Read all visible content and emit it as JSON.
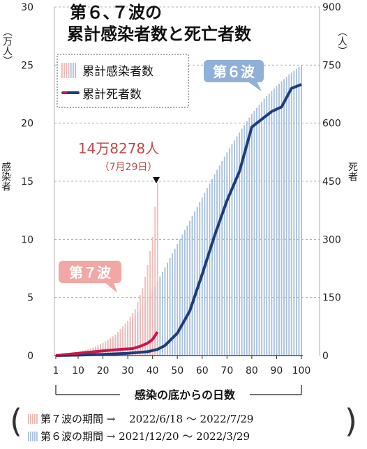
{
  "title_line1": "第６､７波の",
  "title_line2": "累計感染者数と死亡者数",
  "left_unit": "（万人）",
  "right_unit": "（人）",
  "left_axis_label": "感染者",
  "right_axis_label": "死者",
  "xaxis_title": "感染の底からの日数",
  "legend": {
    "cases": "累計感染者数",
    "deaths": "累計死者数"
  },
  "annotations": {
    "peak_value": "14万8278人",
    "peak_date": "（7月29日）",
    "wave6": "第６波",
    "wave7": "第７波"
  },
  "footer": {
    "open_paren": "(",
    "close_paren": ")",
    "wave7_period": "第７波の期間 →　 2022/6/18 ～ 2022/7/29",
    "wave6_period": "第６波の期間 → 2021/12/20 ～ 2022/3/29"
  },
  "colors": {
    "wave6_bar": "#a9c1de",
    "wave7_bar": "#f0b8b4",
    "wave6_line": "#1b3d7a",
    "wave7_line": "#c8184a",
    "label_red": "#c0474a",
    "label_blue_bg": "#8fb0d8",
    "label_pink_bg": "#f1a7a4"
  },
  "chart_data": {
    "type": "bar+line",
    "x_label": "感染の底からの日数",
    "x_ticks": [
      1,
      10,
      20,
      30,
      40,
      50,
      60,
      70,
      80,
      90,
      100
    ],
    "y_left_label": "感染者",
    "y_left_unit": "万人",
    "y_left_ticks": [
      0,
      5,
      10,
      15,
      20,
      25,
      30
    ],
    "y_left_range": [
      0,
      30
    ],
    "y_right_label": "死者",
    "y_right_unit": "人",
    "y_right_ticks": [
      0,
      150,
      300,
      450,
      600,
      750,
      900
    ],
    "y_right_range": [
      0,
      900
    ],
    "gridlines": "dashed horizontal",
    "series": [
      {
        "name": "第６波 累計感染者数",
        "kind": "bar",
        "axis": "left",
        "days": [
          1,
          100
        ],
        "key_points": [
          [
            1,
            0.02
          ],
          [
            5,
            0.08
          ],
          [
            10,
            0.2
          ],
          [
            15,
            0.45
          ],
          [
            20,
            0.9
          ],
          [
            25,
            1.6
          ],
          [
            30,
            2.6
          ],
          [
            35,
            4.0
          ],
          [
            40,
            5.6
          ],
          [
            45,
            7.6
          ],
          [
            50,
            9.6
          ],
          [
            55,
            11.6
          ],
          [
            60,
            13.6
          ],
          [
            65,
            15.6
          ],
          [
            70,
            17.5
          ],
          [
            75,
            19.2
          ],
          [
            80,
            20.8
          ],
          [
            85,
            22.1
          ],
          [
            90,
            23.2
          ],
          [
            95,
            24.2
          ],
          [
            100,
            25.0
          ]
        ]
      },
      {
        "name": "第７波 累計感染者数",
        "kind": "bar",
        "axis": "left",
        "days": [
          1,
          42
        ],
        "key_points": [
          [
            1,
            0.02
          ],
          [
            5,
            0.1
          ],
          [
            10,
            0.3
          ],
          [
            15,
            0.6
          ],
          [
            20,
            1.1
          ],
          [
            25,
            1.8
          ],
          [
            30,
            3.0
          ],
          [
            33,
            4.0
          ],
          [
            36,
            5.8
          ],
          [
            38,
            7.8
          ],
          [
            40,
            10.2
          ],
          [
            41,
            12.8
          ],
          [
            42,
            14.8278
          ]
        ]
      },
      {
        "name": "第６波 累計死者数",
        "kind": "line",
        "axis": "right",
        "key_points": [
          [
            1,
            0
          ],
          [
            10,
            1
          ],
          [
            20,
            3
          ],
          [
            30,
            6
          ],
          [
            38,
            10
          ],
          [
            42,
            16
          ],
          [
            45,
            26
          ],
          [
            50,
            58
          ],
          [
            55,
            115
          ],
          [
            60,
            210
          ],
          [
            65,
            310
          ],
          [
            70,
            400
          ],
          [
            75,
            475
          ],
          [
            80,
            590
          ],
          [
            85,
            615
          ],
          [
            88,
            630
          ],
          [
            92,
            642
          ],
          [
            96,
            690
          ],
          [
            100,
            700
          ]
        ]
      },
      {
        "name": "第７波 累計死者数",
        "kind": "line",
        "axis": "right",
        "key_points": [
          [
            1,
            0
          ],
          [
            10,
            6
          ],
          [
            20,
            12
          ],
          [
            27,
            16
          ],
          [
            32,
            18
          ],
          [
            35,
            24
          ],
          [
            38,
            32
          ],
          [
            40,
            42
          ],
          [
            42,
            61
          ]
        ]
      }
    ],
    "annotations": [
      {
        "text": "14万8278人",
        "x": 42,
        "y": 14.8278
      },
      {
        "text": "（7月29日）",
        "x": 42,
        "y": 14.8278
      }
    ]
  }
}
